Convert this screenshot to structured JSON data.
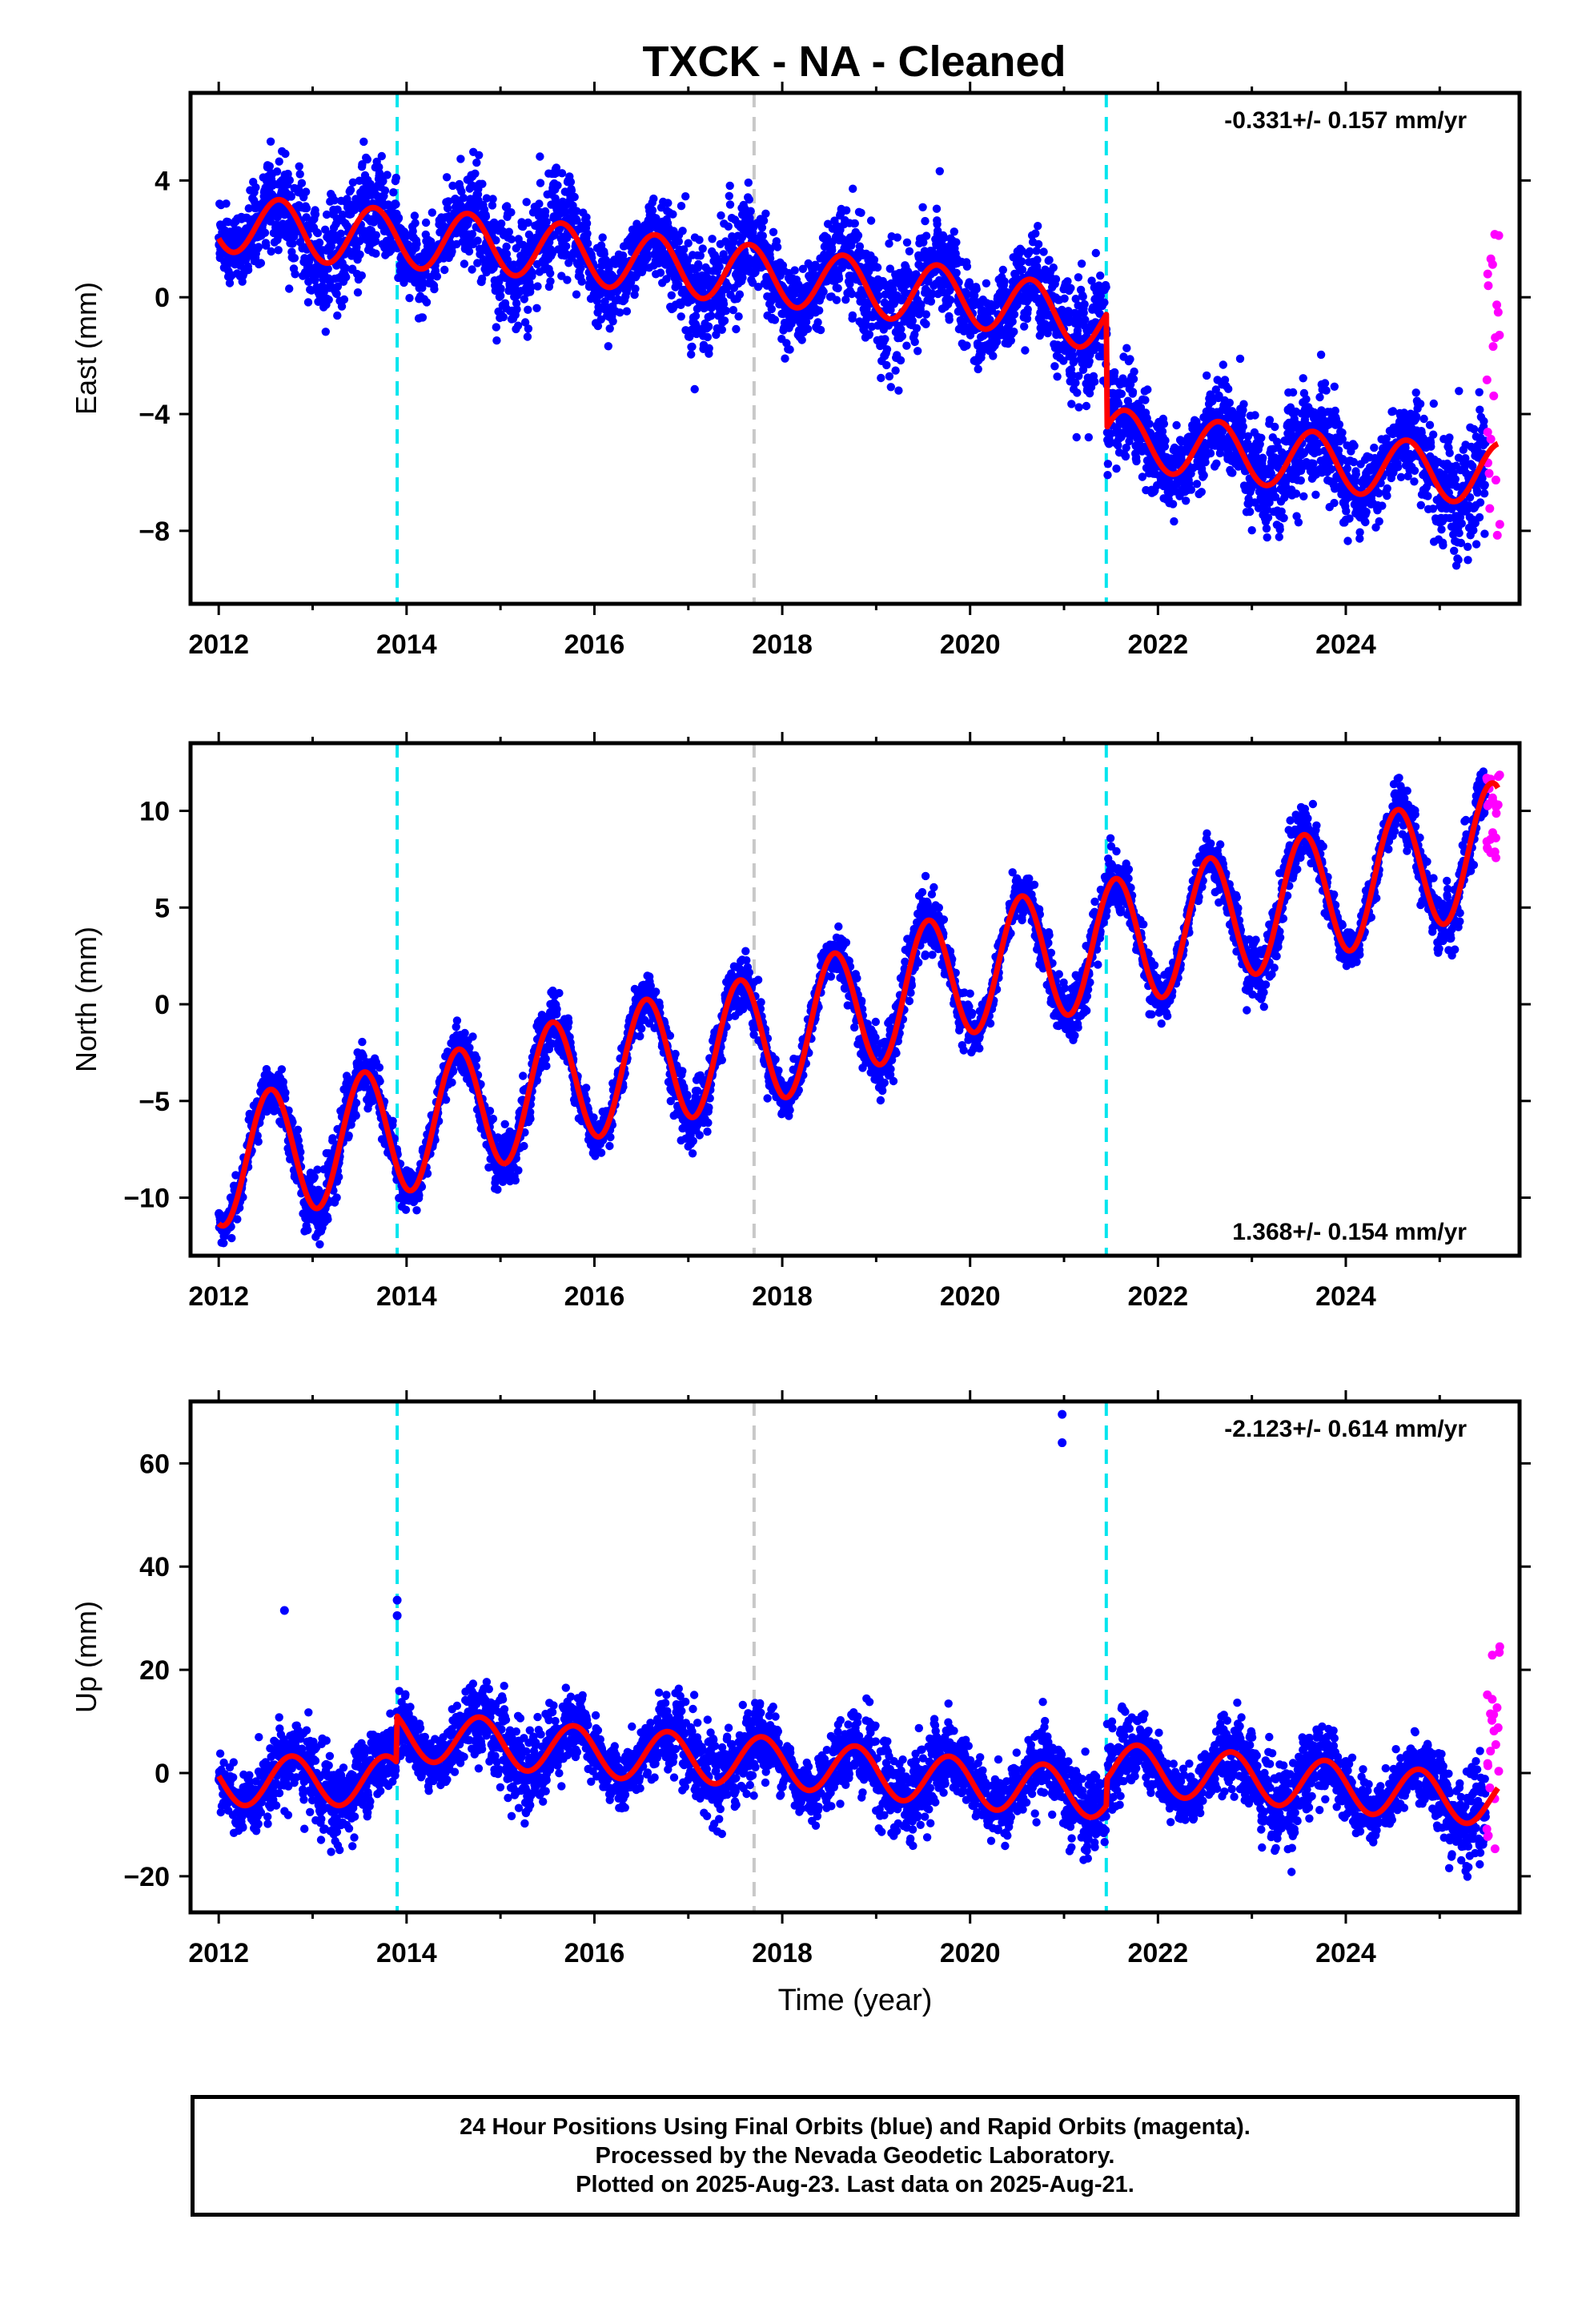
{
  "title": "TXCK  - NA - Cleaned",
  "colors": {
    "final_orbits": "#0000ff",
    "rapid_orbits": "#ff00ff",
    "model_fit": "#ff0000",
    "equipment_change": "#00e5ee",
    "other_event": "#c8c8c8"
  },
  "chart_data": [
    {
      "type": "scatter",
      "component": "east",
      "ylabel": "East (mm)",
      "xlabel": "",
      "xlim": [
        2011.7,
        2025.85
      ],
      "ylim": [
        -10.5,
        7
      ],
      "yticks": [
        -8,
        -4,
        0,
        4
      ],
      "xticks": [
        2012,
        2014,
        2016,
        2018,
        2020,
        2022,
        2024
      ],
      "rate_label": "-0.331+/- 0.157 mm/yr",
      "rate_position": "top-right",
      "vertical_lines": [
        {
          "x": 2013.9,
          "kind": "equipment_change"
        },
        {
          "x": 2017.7,
          "kind": "other_event"
        },
        {
          "x": 2021.45,
          "kind": "equipment_change"
        }
      ],
      "model": {
        "knots_x": [
          2012.0,
          2013.0,
          2014.0,
          2015.0,
          2016.0,
          2017.0,
          2018.0,
          2019.0,
          2020.0,
          2021.0,
          2021.45,
          2021.46,
          2022.0,
          2023.0,
          2024.0,
          2025.0,
          2025.6
        ],
        "knots_y": [
          2.6,
          2.2,
          2.0,
          1.8,
          1.4,
          1.0,
          0.7,
          0.3,
          0.0,
          -0.6,
          -0.9,
          -4.8,
          -5.0,
          -5.4,
          -5.7,
          -6.0,
          -6.0
        ],
        "seasonal_amplitude": 1.0,
        "seasonal_peak_year_fraction": 0.65
      },
      "scatter_noise_sigma": 0.9,
      "rapid_points": {
        "x_range": [
          2025.5,
          2025.64
        ],
        "y_range": [
          -8.4,
          2.8
        ]
      }
    },
    {
      "type": "scatter",
      "component": "north",
      "ylabel": "North (mm)",
      "xlabel": "",
      "xlim": [
        2011.7,
        2025.85
      ],
      "ylim": [
        -13,
        13.5
      ],
      "yticks": [
        -10,
        -5,
        0,
        5,
        10
      ],
      "xticks": [
        2012,
        2014,
        2016,
        2018,
        2020,
        2022,
        2024
      ],
      "rate_label": "1.368+/- 0.154 mm/yr",
      "rate_position": "bottom-right",
      "vertical_lines": [
        {
          "x": 2013.9,
          "kind": "equipment_change"
        },
        {
          "x": 2017.7,
          "kind": "other_event"
        },
        {
          "x": 2021.45,
          "kind": "equipment_change"
        }
      ],
      "model": {
        "knots_x": [
          2012.0,
          2014.0,
          2016.0,
          2018.0,
          2020.0,
          2022.0,
          2024.0,
          2025.6
        ],
        "knots_y": [
          -8.2,
          -6.4,
          -3.6,
          -1.6,
          1.8,
          3.6,
          6.0,
          8.2
        ],
        "seasonal_amplitude": 3.3,
        "seasonal_peak_year_fraction": 0.55
      },
      "scatter_noise_sigma": 0.75,
      "rapid_points": {
        "x_range": [
          2025.5,
          2025.64
        ],
        "y_range": [
          7.4,
          12.4
        ]
      }
    },
    {
      "type": "scatter",
      "component": "up",
      "ylabel": "Up (mm)",
      "xlabel": "Time (year)",
      "xlim": [
        2011.7,
        2025.85
      ],
      "ylim": [
        -27,
        72
      ],
      "yticks": [
        -20,
        0,
        20,
        40,
        60
      ],
      "xticks": [
        2012,
        2014,
        2016,
        2018,
        2020,
        2022,
        2024
      ],
      "rate_label": "-2.123+/- 0.614 mm/yr",
      "rate_position": "top-right",
      "vertical_lines": [
        {
          "x": 2013.9,
          "kind": "equipment_change"
        },
        {
          "x": 2017.7,
          "kind": "other_event"
        },
        {
          "x": 2021.45,
          "kind": "equipment_change"
        }
      ],
      "model": {
        "knots_x": [
          2012.0,
          2013.89,
          2013.9,
          2016.0,
          2018.0,
          2020.0,
          2021.45,
          2021.46,
          2023.0,
          2025.6
        ],
        "knots_y": [
          -1.5,
          -1.5,
          7.5,
          4.0,
          2.0,
          -2.0,
          -4.0,
          1.0,
          -1.0,
          -5.5
        ],
        "seasonal_amplitude": 4.8,
        "seasonal_peak_year_fraction": 0.78
      },
      "scatter_noise_sigma": 3.8,
      "outliers": [
        [
          2012.7,
          31.5
        ],
        [
          2013.9,
          33.5
        ],
        [
          2013.9,
          30.5
        ],
        [
          2020.98,
          69.5
        ],
        [
          2020.98,
          64
        ]
      ],
      "rapid_points": {
        "x_range": [
          2025.5,
          2025.64
        ],
        "y_range": [
          -15,
          26
        ]
      }
    }
  ],
  "footer": {
    "line1": "24 Hour Positions Using Final Orbits (blue) and Rapid Orbits (magenta).",
    "line2": "Processed by the Nevada Geodetic Laboratory.",
    "line3": "Plotted on 2025-Aug-23. Last data on 2025-Aug-21."
  }
}
